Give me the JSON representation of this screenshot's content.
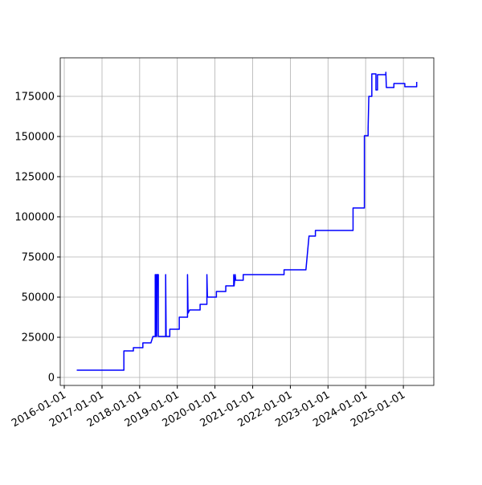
{
  "chart_data": {
    "type": "line",
    "color": "#0000ff",
    "grid": true,
    "x": [
      "2016-05-01",
      "2017-08-01",
      "2017-08-01",
      "2017-11-01",
      "2017-11-01",
      "2018-02-01",
      "2018-02-01",
      "2018-04-20",
      "2018-05-10",
      "2018-06-01",
      "2018-06-01",
      "2018-06-05",
      "2018-06-10",
      "2018-06-15",
      "2018-06-20",
      "2018-07-01",
      "2018-07-01",
      "2018-09-10",
      "2018-09-10",
      "2018-09-15",
      "2018-10-20",
      "2018-10-20",
      "2019-01-20",
      "2019-01-20",
      "2019-04-10",
      "2019-04-10",
      "2019-04-15",
      "2019-05-01",
      "2019-08-10",
      "2019-08-10",
      "2019-10-15",
      "2019-10-15",
      "2019-10-20",
      "2020-01-15",
      "2020-01-15",
      "2020-04-15",
      "2020-04-15",
      "2020-07-01",
      "2020-07-01",
      "2020-07-05",
      "2020-07-15",
      "2020-07-20",
      "2020-10-01",
      "2020-10-01",
      "2021-11-01",
      "2021-11-01",
      "2022-06-01",
      "2022-07-01",
      "2022-09-01",
      "2022-09-01",
      "2023-09-01",
      "2023-09-01",
      "2023-12-20",
      "2023-12-20",
      "2024-01-25",
      "2024-01-25",
      "2024-02-01",
      "2024-03-01",
      "2024-03-01",
      "2024-04-10",
      "2024-04-10",
      "2024-04-25",
      "2024-04-25",
      "2024-07-15",
      "2024-07-15",
      "2024-07-20",
      "2024-10-01",
      "2024-10-01",
      "2025-01-15",
      "2025-01-15",
      "2025-05-10",
      "2025-05-10"
    ],
    "values": [
      4500,
      4500,
      16500,
      16500,
      18500,
      18500,
      21500,
      21500,
      25500,
      25500,
      64000,
      25500,
      64000,
      25500,
      64000,
      64000,
      25500,
      25500,
      64000,
      25500,
      25500,
      30000,
      30000,
      37500,
      37500,
      64000,
      40000,
      42000,
      42000,
      45500,
      45500,
      64000,
      50000,
      50000,
      53500,
      53500,
      57000,
      57000,
      64000,
      57000,
      64000,
      60500,
      60500,
      64000,
      64000,
      67000,
      67000,
      88000,
      88000,
      91500,
      91500,
      105500,
      105500,
      150500,
      150500,
      155000,
      175000,
      175000,
      189000,
      189000,
      179000,
      179000,
      188500,
      188500,
      190000,
      180500,
      180500,
      183000,
      183000,
      181000,
      181000,
      184000
    ],
    "xlim": [
      "2015-11-23",
      "2025-10-23"
    ],
    "xticks": [
      "2016-01-01",
      "2017-01-01",
      "2018-01-01",
      "2019-01-01",
      "2020-01-01",
      "2021-01-01",
      "2022-01-01",
      "2023-01-01",
      "2024-01-01",
      "2025-01-01"
    ],
    "ylim": [
      -5000,
      199000
    ],
    "yticks": [
      0,
      25000,
      50000,
      75000,
      100000,
      125000,
      150000,
      175000
    ]
  }
}
